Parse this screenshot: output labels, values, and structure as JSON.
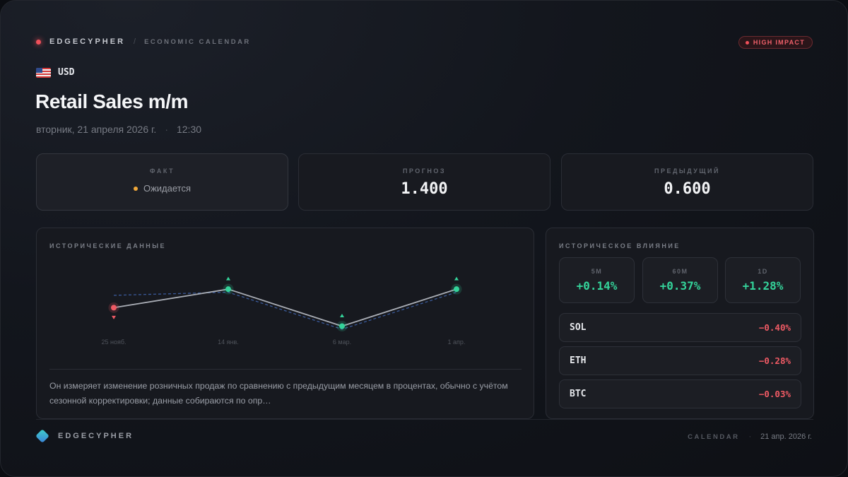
{
  "header": {
    "brand": "EDGECYPHER",
    "separator": "/",
    "section": "ECONOMIC CALENDAR",
    "impact_badge": "HIGH IMPACT"
  },
  "event": {
    "currency": "USD",
    "title": "Retail Sales m/m",
    "date": "вторник, 21 апреля 2026 г.",
    "meta_separator": "·",
    "time": "12:30"
  },
  "stats": {
    "actual": {
      "label": "ФАКТ",
      "value": "Ожидается"
    },
    "forecast": {
      "label": "ПРОГНОЗ",
      "value": "1.400"
    },
    "previous": {
      "label": "ПРЕДЫДУЩИЙ",
      "value": "0.600"
    }
  },
  "history": {
    "title": "ИСТОРИЧЕСКИЕ ДАННЫЕ",
    "description": "Он измеряет изменение розничных продаж по сравнению с предыдущим месяцем в процентах, обычно с учётом сезонной корректировки; данные собираются по опр…"
  },
  "chart_data": {
    "type": "line",
    "categories": [
      "25 нояб.",
      "14 янв.",
      "6 мар.",
      "1 апр."
    ],
    "series": [
      {
        "role": "actual",
        "values": [
          0.0,
          0.6,
          -0.6,
          0.6
        ],
        "style": "solid",
        "color": "#a9adb5"
      },
      {
        "role": "forecast",
        "values": [
          0.4,
          0.5,
          -0.7,
          0.5
        ],
        "style": "dashed",
        "color": "#3a5a9a"
      }
    ],
    "point_status": [
      "miss",
      "beat",
      "beat",
      "beat"
    ],
    "status_colors": {
      "beat": "#34d39a",
      "miss": "#ef5a64"
    },
    "ylim": [
      -1,
      1.2
    ],
    "grid": false,
    "legend": "none"
  },
  "impact": {
    "title": "ИСТОРИЧЕСКОЕ ВЛИЯНИЕ",
    "timeframes": [
      {
        "label": "5M",
        "value": "+0.14%"
      },
      {
        "label": "60M",
        "value": "+0.37%"
      },
      {
        "label": "1D",
        "value": "+1.28%"
      }
    ],
    "assets": [
      {
        "name": "SOL",
        "change": "−0.40%"
      },
      {
        "name": "ETH",
        "change": "−0.28%"
      },
      {
        "name": "BTC",
        "change": "−0.03%"
      }
    ]
  },
  "footer": {
    "brand": "EDGECYPHER",
    "section": "CALENDAR",
    "separator": "·",
    "date": "21 апр. 2026 г."
  },
  "colors": {
    "accent_red": "#f0505a",
    "positive": "#34d39a",
    "negative": "#ef5a64",
    "pending": "#f0a83a"
  }
}
